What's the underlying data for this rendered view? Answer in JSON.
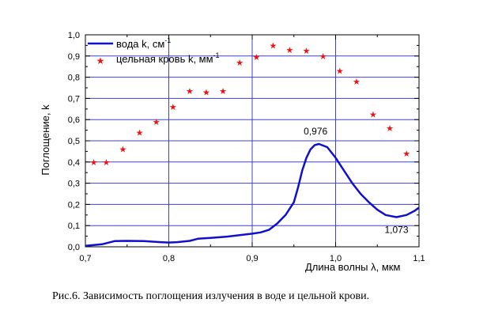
{
  "chart_data": {
    "type": "line",
    "xlabel": "Длина волны λ, мкм",
    "ylabel": "Поглощение, k",
    "xlim": [
      0.7,
      1.1
    ],
    "ylim": [
      0.0,
      1.0
    ],
    "x_ticks": [
      0.7,
      0.8,
      0.9,
      1.0,
      1.1
    ],
    "x_tick_labels": [
      "0,7",
      "0,8",
      "0,9",
      "1,0",
      "1,1"
    ],
    "y_ticks": [
      0.0,
      0.1,
      0.2,
      0.3,
      0.4,
      0.5,
      0.6,
      0.7,
      0.8,
      0.9,
      1.0
    ],
    "y_tick_labels": [
      "0,0",
      "0,1",
      "0,2",
      "0,3",
      "0,4",
      "0,5",
      "0,6",
      "0,7",
      "0,8",
      "0,9",
      "1,0"
    ],
    "grid": true,
    "legend_position": "top-left",
    "series": [
      {
        "name": "вода k, см",
        "name_superscript": "-1",
        "style": "line",
        "color": "#1010cc",
        "x": [
          0.7,
          0.72,
          0.735,
          0.75,
          0.77,
          0.79,
          0.8,
          0.81,
          0.825,
          0.835,
          0.85,
          0.87,
          0.885,
          0.9,
          0.91,
          0.92,
          0.93,
          0.94,
          0.95,
          0.955,
          0.96,
          0.965,
          0.97,
          0.975,
          0.98,
          0.99,
          1.0,
          1.01,
          1.02,
          1.03,
          1.04,
          1.05,
          1.06,
          1.073,
          1.085,
          1.095,
          1.1
        ],
        "y": [
          0.005,
          0.012,
          0.027,
          0.028,
          0.027,
          0.022,
          0.02,
          0.022,
          0.028,
          0.038,
          0.042,
          0.048,
          0.055,
          0.062,
          0.068,
          0.08,
          0.11,
          0.15,
          0.21,
          0.28,
          0.36,
          0.42,
          0.46,
          0.48,
          0.485,
          0.47,
          0.42,
          0.36,
          0.3,
          0.25,
          0.21,
          0.175,
          0.15,
          0.14,
          0.15,
          0.17,
          0.185
        ]
      },
      {
        "name": "цельная кровь k, мм",
        "name_superscript": "-1",
        "style": "scatter",
        "color": "#ee1111",
        "x": [
          0.71,
          0.725,
          0.745,
          0.765,
          0.785,
          0.805,
          0.825,
          0.845,
          0.865,
          0.885,
          0.905,
          0.925,
          0.945,
          0.965,
          0.985,
          1.005,
          1.025,
          1.045,
          1.065,
          1.085
        ],
        "y": [
          0.4,
          0.4,
          0.46,
          0.54,
          0.59,
          0.66,
          0.735,
          0.73,
          0.735,
          0.87,
          0.895,
          0.95,
          0.93,
          0.925,
          0.9,
          0.83,
          0.78,
          0.625,
          0.56,
          0.44
        ]
      }
    ],
    "annotations": [
      {
        "text": "0,976",
        "x": 0.976,
        "y": 0.485,
        "position": "above"
      },
      {
        "text": "1,073",
        "x": 1.073,
        "y": 0.14,
        "position": "below"
      }
    ]
  },
  "caption": "Рис.6. Зависимость поглощения излучения в воде и цельной крови."
}
